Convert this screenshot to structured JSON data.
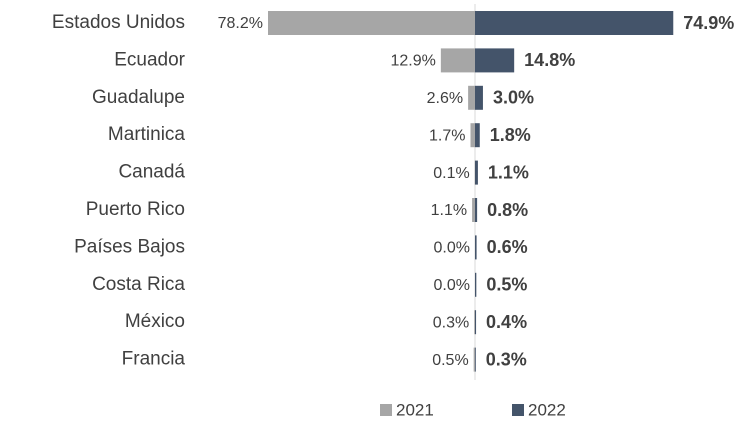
{
  "chart_data": {
    "type": "bar",
    "categories": [
      "Estados Unidos",
      "Ecuador",
      "Guadalupe",
      "Martinica",
      "Canadá",
      "Puerto Rico",
      "Países Bajos",
      "Costa Rica",
      "México",
      "Francia"
    ],
    "series": [
      {
        "name": "2021",
        "color": "#a6a6a6",
        "values": [
          78.2,
          12.9,
          2.6,
          1.7,
          0.1,
          1.1,
          0.0,
          0.0,
          0.3,
          0.5
        ],
        "value_labels": [
          "78.2%",
          "12.9%",
          "2.6%",
          "1.7%",
          "0.1%",
          "1.1%",
          "0.0%",
          "0.0%",
          "0.3%",
          "0.5%"
        ]
      },
      {
        "name": "2022",
        "color": "#44546a",
        "values": [
          74.9,
          14.8,
          3.0,
          1.8,
          1.1,
          0.8,
          0.6,
          0.5,
          0.4,
          0.3
        ],
        "value_labels": [
          "74.9%",
          "14.8%",
          "3.0%",
          "1.8%",
          "1.1%",
          "0.8%",
          "0.6%",
          "0.5%",
          "0.4%",
          "0.3%"
        ]
      }
    ],
    "legend": "bottom"
  }
}
